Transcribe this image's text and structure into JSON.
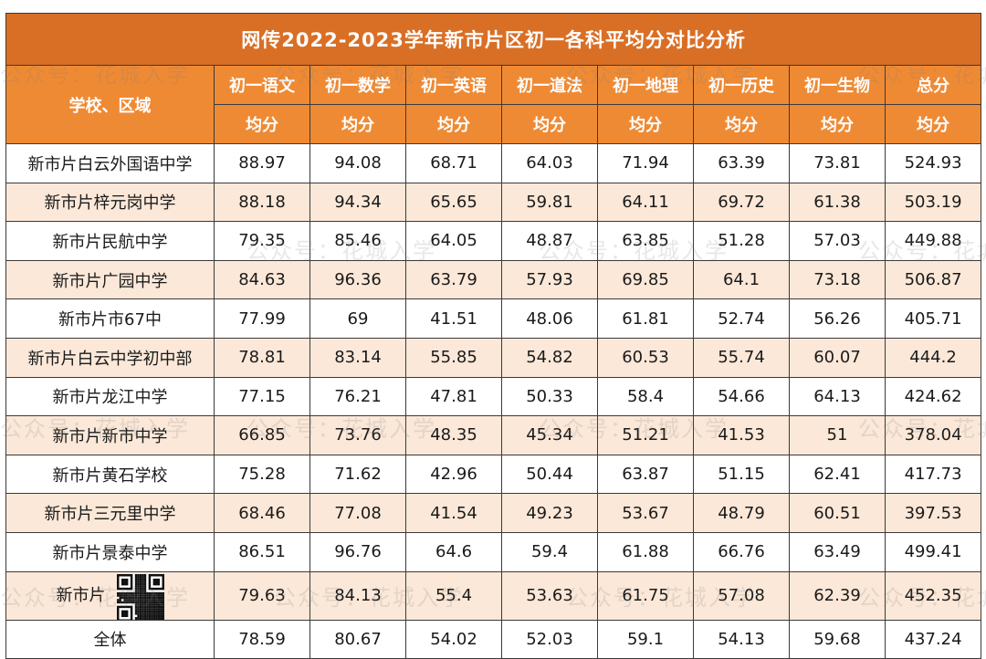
{
  "title": "网传2022-2023学年新市片区初一各科平均分对比分析",
  "header": {
    "school_col": "学校、区域",
    "subjects": [
      "初一语文",
      "初一数学",
      "初一英语",
      "初一道法",
      "初一地理",
      "初一历史",
      "初一生物",
      "总分"
    ],
    "sub_label": "均分"
  },
  "rows": [
    {
      "school": "新市片白云外国语中学",
      "values": [
        "88.97",
        "94.08",
        "68.71",
        "64.03",
        "71.94",
        "63.39",
        "73.81",
        "524.93"
      ]
    },
    {
      "school": "新市片梓元岗中学",
      "values": [
        "88.18",
        "94.34",
        "65.65",
        "59.81",
        "64.11",
        "69.72",
        "61.38",
        "503.19"
      ]
    },
    {
      "school": "新市片民航中学",
      "values": [
        "79.35",
        "85.46",
        "64.05",
        "48.87",
        "63.85",
        "51.28",
        "57.03",
        "449.88"
      ]
    },
    {
      "school": "新市片广园中学",
      "values": [
        "84.63",
        "96.36",
        "63.79",
        "57.93",
        "69.85",
        "64.1",
        "73.18",
        "506.87"
      ]
    },
    {
      "school": "新市片市67中",
      "values": [
        "77.99",
        "69",
        "41.51",
        "48.06",
        "61.81",
        "52.74",
        "56.26",
        "405.71"
      ]
    },
    {
      "school": "新市片白云中学初中部",
      "values": [
        "78.81",
        "83.14",
        "55.85",
        "54.82",
        "60.53",
        "55.74",
        "60.07",
        "444.2"
      ]
    },
    {
      "school": "新市片龙江中学",
      "values": [
        "77.15",
        "76.21",
        "47.81",
        "50.33",
        "58.4",
        "54.66",
        "64.13",
        "424.62"
      ]
    },
    {
      "school": "新市片新市中学",
      "values": [
        "66.85",
        "73.76",
        "48.35",
        "45.34",
        "51.21",
        "41.53",
        "51",
        "378.04"
      ]
    },
    {
      "school": "新市片黄石学校",
      "values": [
        "75.28",
        "71.62",
        "42.96",
        "50.44",
        "63.87",
        "51.15",
        "62.41",
        "417.73"
      ]
    },
    {
      "school": "新市片三元里中学",
      "values": [
        "68.46",
        "77.08",
        "41.54",
        "49.23",
        "53.67",
        "48.79",
        "60.51",
        "397.53"
      ]
    },
    {
      "school": "新市片景泰中学",
      "values": [
        "86.51",
        "96.76",
        "64.6",
        "59.4",
        "61.88",
        "66.76",
        "63.49",
        "499.41"
      ]
    },
    {
      "school": "新市片",
      "values": [
        "79.63",
        "84.13",
        "55.4",
        "53.63",
        "61.75",
        "57.08",
        "62.39",
        "452.35"
      ]
    },
    {
      "school": "全体",
      "values": [
        "78.59",
        "80.67",
        "54.02",
        "52.03",
        "59.1",
        "54.13",
        "59.68",
        "437.24"
      ]
    }
  ],
  "watermark": "公众号：花城入学",
  "colors": {
    "title_bg": "#d96f25",
    "header_bg": "#ef8a34",
    "alt_row_bg": "#fbe8d8"
  }
}
